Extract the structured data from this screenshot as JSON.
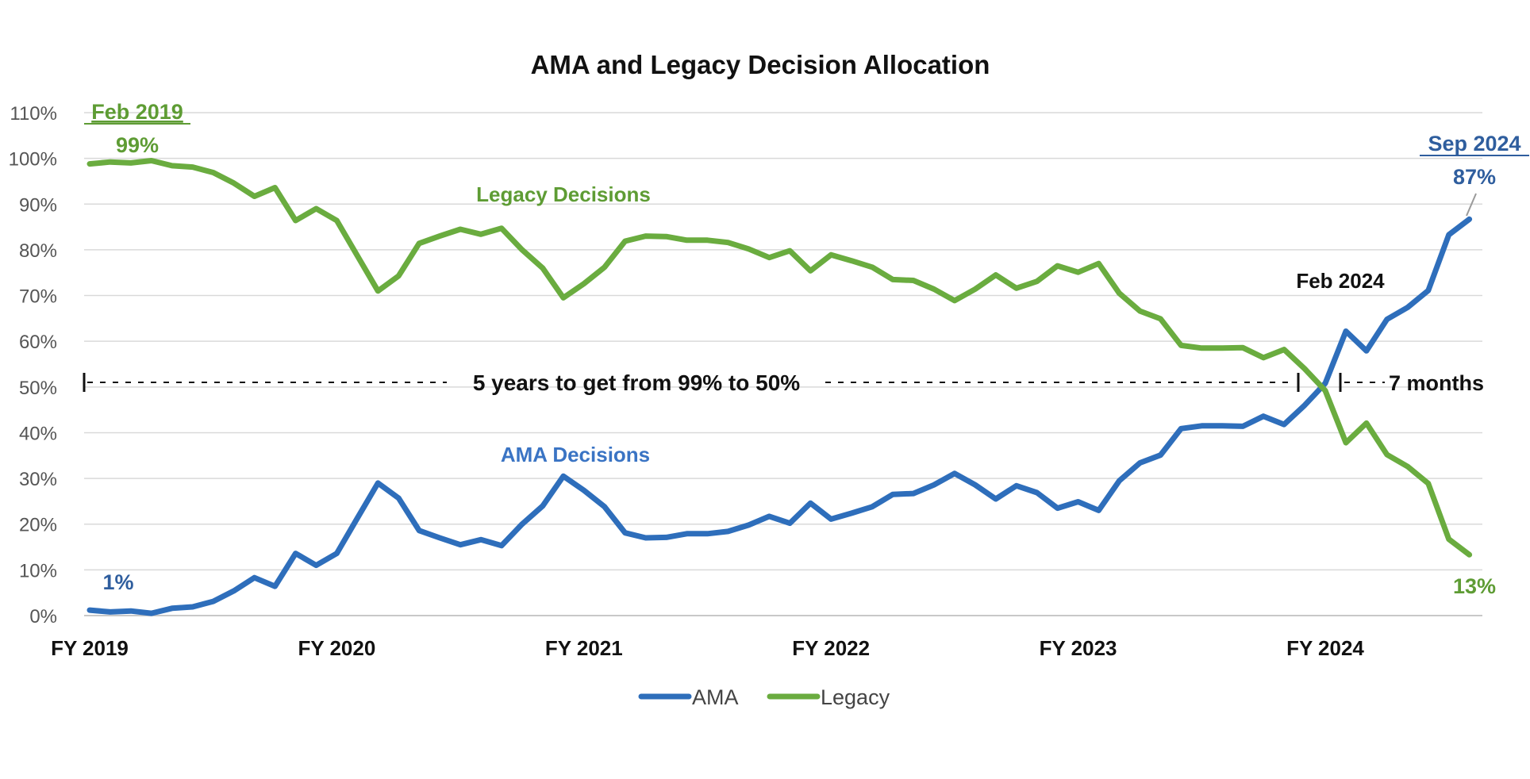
{
  "chart_data": {
    "type": "line",
    "title": "AMA and Legacy Decision Allocation",
    "xlabel": "",
    "ylabel": "",
    "ylim": [
      0,
      110
    ],
    "y_ticks": [
      0,
      10,
      20,
      30,
      40,
      50,
      60,
      70,
      80,
      90,
      100,
      110
    ],
    "y_tick_labels": [
      "0%",
      "10%",
      "20%",
      "30%",
      "40%",
      "50%",
      "60%",
      "70%",
      "80%",
      "90%",
      "100%",
      "110%"
    ],
    "x_tick_labels": [
      "FY 2019",
      "FY 2020",
      "FY 2021",
      "FY 2022",
      "FY 2023",
      "FY 2024"
    ],
    "months_per_fiscal_year": 12,
    "grid": true,
    "legend_position": "bottom",
    "series": [
      {
        "name": "AMA",
        "color": "#2E6EBB",
        "values": [
          1.2,
          0.8,
          1,
          0.5,
          1.6,
          1.9,
          3.1,
          5.4,
          8.3,
          6.4,
          13.6,
          11,
          13.6,
          21.3,
          29,
          25.7,
          18.6,
          17,
          15.5,
          16.6,
          15.3,
          20,
          24,
          30.5,
          27.4,
          23.8,
          18.1,
          17,
          17.1,
          17.9,
          17.9,
          18.4,
          19.8,
          21.7,
          20.2,
          24.6,
          21.1,
          22.4,
          23.8,
          26.5,
          26.7,
          28.6,
          31.1,
          28.6,
          25.5,
          28.4,
          26.9,
          23.5,
          24.9,
          23,
          29.5,
          33.4,
          35.1,
          40.9,
          41.5,
          41.5,
          41.4,
          43.6,
          41.8,
          46,
          50.8,
          62.2,
          57.9,
          64.8,
          67.4,
          71.1,
          83.3,
          86.7
        ]
      },
      {
        "name": "Legacy",
        "color": "#6AAC3F",
        "values": [
          98.8,
          99.2,
          99,
          99.5,
          98.4,
          98.1,
          96.9,
          94.6,
          91.7,
          93.6,
          86.4,
          89,
          86.4,
          78.7,
          71,
          74.3,
          81.4,
          83,
          84.5,
          83.4,
          84.7,
          80,
          76,
          69.5,
          72.6,
          76.2,
          81.9,
          83,
          82.9,
          82.1,
          82.1,
          81.6,
          80.2,
          78.3,
          79.8,
          75.4,
          78.9,
          77.6,
          76.2,
          73.5,
          73.3,
          71.4,
          68.9,
          71.4,
          74.5,
          71.6,
          73.1,
          76.5,
          75.1,
          77,
          70.5,
          66.6,
          64.9,
          59.1,
          58.5,
          58.5,
          58.6,
          56.4,
          58.2,
          54,
          49.2,
          37.8,
          42.1,
          35.2,
          32.6,
          28.9,
          16.7,
          13.3
        ]
      }
    ],
    "annotations": {
      "start_month": "Feb 2019",
      "start_value": "99%",
      "ama_start_value": "1%",
      "legacy_series_label": "Legacy Decisions",
      "ama_series_label": "AMA Decisions",
      "crossover_month": "Feb 2024",
      "end_month": "Sep 2024",
      "end_ama_value": "87%",
      "end_legacy_value": "13%",
      "five_year_note": "5 years to get from 99% to 50%",
      "seven_month_note": "7 months"
    }
  }
}
